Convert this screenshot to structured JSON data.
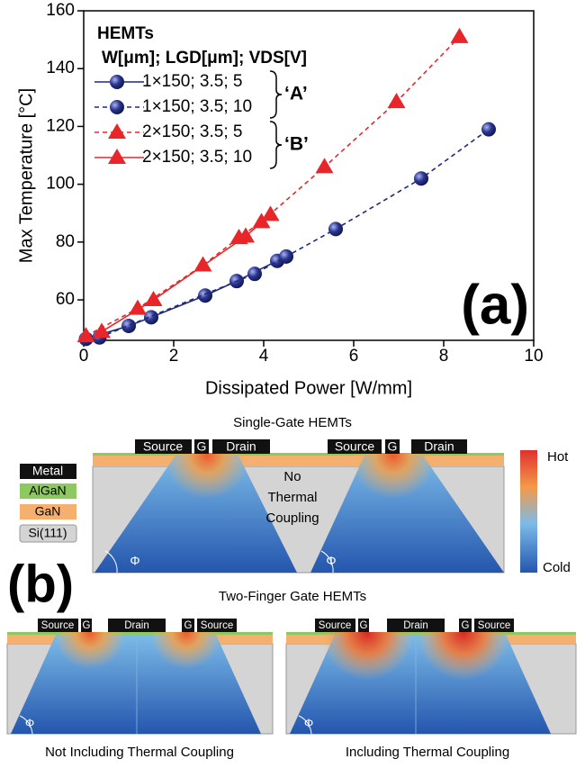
{
  "chart_data": {
    "type": "line",
    "x_label": "Dissipated Power [W/mm]",
    "y_label": "Max Temperature [°C]",
    "annotation": "(a)",
    "legend_title": "HEMTs",
    "legend_subtitle": "W[μm]; LGD[μm]; VDS[V]",
    "groups": [
      {
        "label": "‘A’",
        "series": [
          0,
          1
        ]
      },
      {
        "label": "‘B’",
        "series": [
          2,
          3
        ]
      }
    ],
    "xlim": [
      0,
      10
    ],
    "xticks": [
      0,
      2,
      4,
      6,
      8,
      10
    ],
    "ylim": [
      46,
      160
    ],
    "yticks": [
      60,
      80,
      100,
      120,
      140,
      160
    ],
    "series": [
      {
        "name": "1×150; 3.5; 5",
        "color": "#1f2a7a",
        "linestyle": "solid",
        "marker": "circle",
        "x": [
          0.05,
          1.0,
          1.5,
          2.7,
          3.4,
          4.3
        ],
        "values": [
          46.5,
          51,
          54,
          61.5,
          66.5,
          73.5
        ]
      },
      {
        "name": "1×150; 3.5; 10",
        "color": "#1f2a7a",
        "linestyle": "dashed",
        "marker": "circle",
        "x": [
          0.35,
          3.8,
          4.5,
          5.6,
          7.5,
          9.0
        ],
        "values": [
          47,
          69,
          75,
          84.5,
          102,
          119
        ]
      },
      {
        "name": "2×150; 3.5; 5",
        "color": "#e8262a",
        "linestyle": "dashed",
        "marker": "triangle",
        "x": [
          0.05,
          1.2,
          2.65,
          3.45,
          3.95,
          5.35,
          6.95,
          8.35
        ],
        "values": [
          47.5,
          57,
          72,
          81.5,
          87,
          106,
          128.5,
          151
        ]
      },
      {
        "name": "2×150; 3.5; 10",
        "color": "#e8262a",
        "linestyle": "solid",
        "marker": "triangle",
        "x": [
          0.4,
          1.55,
          3.6,
          4.15
        ],
        "values": [
          49,
          60,
          82,
          89.5
        ]
      }
    ]
  },
  "diagram": {
    "label": "(b)",
    "layers": [
      "Metal",
      "AlGaN",
      "GaN",
      "Si(111)"
    ],
    "colorbar": {
      "top": "Hot",
      "bottom": "Cold"
    },
    "angle_symbol": "Φ",
    "single_gate": {
      "title": "Single-Gate HEMTs",
      "electrodes": [
        "Source",
        "G",
        "Drain",
        "Source",
        "G",
        "Drain"
      ],
      "note": [
        "No",
        "Thermal",
        "Coupling"
      ]
    },
    "two_finger": {
      "title": "Two-Finger Gate HEMTs",
      "electrodes": [
        "Source",
        "G",
        "Drain",
        "G",
        "Source"
      ],
      "captions": [
        "Not Including Thermal Coupling",
        "Including Thermal Coupling"
      ]
    }
  }
}
